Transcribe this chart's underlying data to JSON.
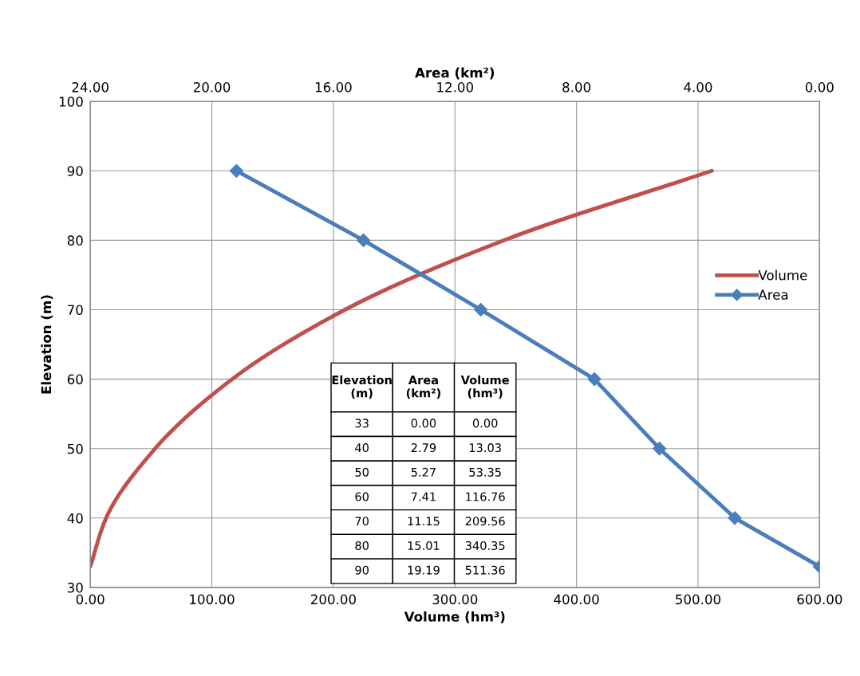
{
  "chart_data": [
    {
      "type": "line",
      "xlabel": "Volume (hm³)",
      "x2label": "Area (km²)",
      "ylabel": "Elevation (m)",
      "series": [
        {
          "name": "Volume",
          "color": "#c0504d",
          "marker": "none",
          "x": [
            0.0,
            13.03,
            53.35,
            116.76,
            209.56,
            340.35,
            511.36
          ],
          "values": [
            33,
            40,
            50,
            60,
            70,
            80,
            90
          ]
        },
        {
          "name": "Area",
          "color": "#4a7ebb",
          "marker": "diamond",
          "axis": "x2",
          "x": [
            0.0,
            2.79,
            5.27,
            7.41,
            11.15,
            15.01,
            19.19
          ],
          "values": [
            33,
            40,
            50,
            60,
            70,
            80,
            90
          ]
        }
      ],
      "xlim": [
        0,
        600
      ],
      "xticks": [
        {
          "value": 0,
          "label": "0.00"
        },
        {
          "value": 100,
          "label": "100.00"
        },
        {
          "value": 200,
          "label": "200.00"
        },
        {
          "value": 300,
          "label": "300.00"
        },
        {
          "value": 400,
          "label": "400.00"
        },
        {
          "value": 500,
          "label": "500.00"
        },
        {
          "value": 600,
          "label": "600.00"
        }
      ],
      "x2lim": [
        24,
        0
      ],
      "x2ticks": [
        {
          "value": 24,
          "label": "24.00"
        },
        {
          "value": 20,
          "label": "20.00"
        },
        {
          "value": 16,
          "label": "16.00"
        },
        {
          "value": 12,
          "label": "12.00"
        },
        {
          "value": 8,
          "label": "8.00"
        },
        {
          "value": 4,
          "label": "4.00"
        },
        {
          "value": 0,
          "label": "0.00"
        }
      ],
      "ylim": [
        30,
        100
      ],
      "yticks": [
        30,
        40,
        50,
        60,
        70,
        80,
        90,
        100
      ],
      "grid": true,
      "legend": "right"
    },
    {
      "type": "other",
      "categories": [
        "Elevation (m)",
        "Area (km²)",
        "Volume (hm³)"
      ],
      "annotations": [
        "33",
        "0.00",
        "0.00",
        "40",
        "2.79",
        "13.03",
        "50",
        "5.27",
        "53.35",
        "60",
        "7.41",
        "116.76",
        "70",
        "11.15",
        "209.56",
        "80",
        "15.01",
        "340.35",
        "90",
        "19.19",
        "511.36"
      ]
    }
  ]
}
